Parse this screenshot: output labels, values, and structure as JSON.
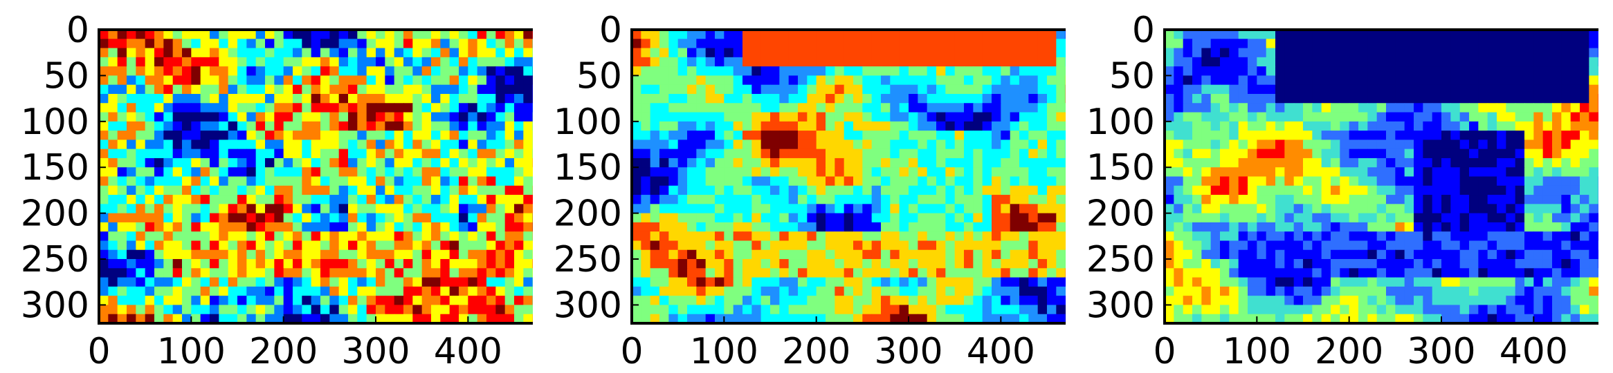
{
  "chart_data": [
    {
      "type": "heatmap",
      "title": "",
      "xlabel": "",
      "ylabel": "",
      "xlim": [
        0,
        480
      ],
      "ylim": [
        320,
        0
      ],
      "xticks": [
        0,
        100,
        200,
        300,
        400
      ],
      "yticks": [
        0,
        50,
        100,
        150,
        200,
        250,
        300
      ],
      "colormap": "jet",
      "colors": [
        "#00007f",
        "#0000ff",
        "#007fff",
        "#00ffff",
        "#7fff7f",
        "#ffff00",
        "#ff7f00",
        "#ff0000",
        "#7f0000"
      ],
      "grid": false
    },
    {
      "type": "heatmap",
      "title": "",
      "xlabel": "",
      "ylabel": "",
      "xlim": [
        0,
        480
      ],
      "ylim": [
        320,
        0
      ],
      "xticks": [
        0,
        100,
        200,
        300,
        400
      ],
      "yticks": [
        0,
        50,
        100,
        150,
        200,
        250,
        300
      ],
      "colormap": "jet",
      "colors": [
        "#00007f",
        "#0000ff",
        "#1e90ff",
        "#00ffff",
        "#7fff7f",
        "#ffd700",
        "#ff4500",
        "#7f0000"
      ],
      "grid": false
    },
    {
      "type": "heatmap",
      "title": "",
      "xlabel": "",
      "ylabel": "",
      "xlim": [
        0,
        480
      ],
      "ylim": [
        320,
        0
      ],
      "xticks": [
        0,
        100,
        200,
        300,
        400
      ],
      "yticks": [
        0,
        50,
        100,
        150,
        200,
        250,
        300
      ],
      "colormap": "jet",
      "colors": [
        "#00007f",
        "#0000ff",
        "#2f6fff",
        "#40e0d0",
        "#7fff7f",
        "#ffff00",
        "#ff8c00",
        "#ff0000"
      ],
      "grid": false
    }
  ]
}
